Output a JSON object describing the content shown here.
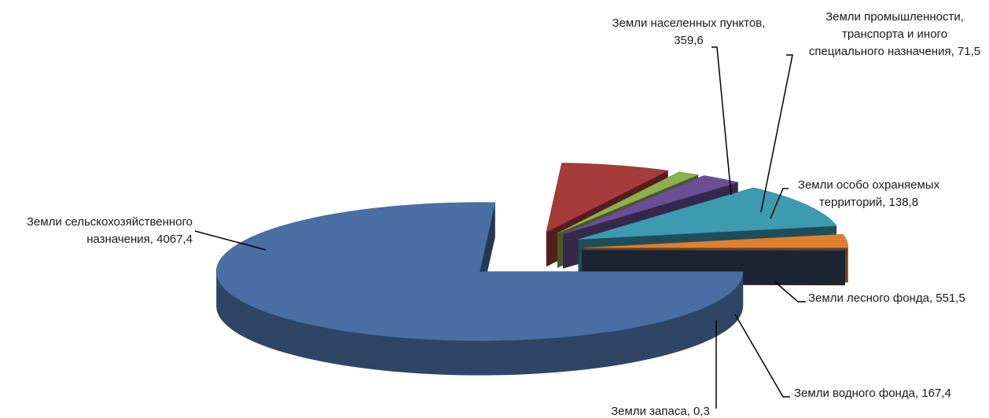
{
  "chart_data": {
    "type": "pie",
    "style": "3d-exploded",
    "categories": [
      "Земли сельскохозяйственного назначения",
      "Земли населенных пунктов",
      "Земли промышленности, транспорта и иного специального назначения",
      "Земли особо охраняемых территорий",
      "Земли лесного фонда",
      "Земли водного фонда",
      "Земли запаса"
    ],
    "values": [
      4067.4,
      359.6,
      71.5,
      138.8,
      551.5,
      167.4,
      0.3
    ],
    "colors": [
      "#4a6fa5",
      "#a53b3a",
      "#8eb04c",
      "#6b4f96",
      "#3d9bb1",
      "#dd8030",
      "#3a4862"
    ],
    "labels": [
      {
        "lines": [
          "Земли сельскохозяйственного",
          "назначения, 4067,4"
        ]
      },
      {
        "lines": [
          "Земли населенных пунктов,",
          "359,6"
        ]
      },
      {
        "lines": [
          "Земли промышленности,",
          "транспорта и иного",
          "специального назначения, 71,5"
        ]
      },
      {
        "lines": [
          "Земли особо охраняемых",
          "территорий, 138,8"
        ]
      },
      {
        "lines": [
          "Земли лесного фонда, 551,5"
        ]
      },
      {
        "lines": [
          "Земли водного фонда, 167,4"
        ]
      },
      {
        "lines": [
          "Земли запаса, 0,3"
        ]
      }
    ],
    "legend": "none",
    "grid": false
  }
}
